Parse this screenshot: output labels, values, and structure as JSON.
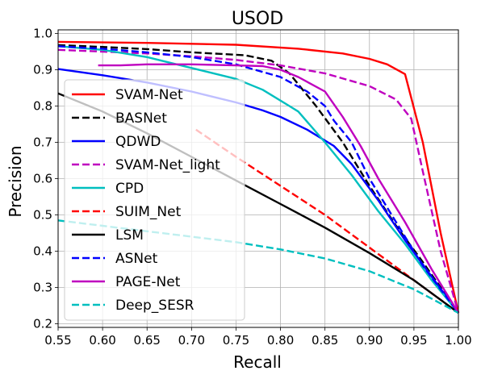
{
  "chart_data": {
    "type": "line",
    "title": "USOD",
    "xlabel": "Recall",
    "ylabel": "Precision",
    "xlim": [
      0.55,
      1.0
    ],
    "ylim": [
      0.19,
      1.01
    ],
    "xticks": [
      "0.55",
      "0.60",
      "0.65",
      "0.70",
      "0.75",
      "0.80",
      "0.85",
      "0.90",
      "0.95",
      "1.00"
    ],
    "yticks": [
      "0.2",
      "0.3",
      "0.4",
      "0.5",
      "0.6",
      "0.7",
      "0.8",
      "0.9",
      "1.0"
    ],
    "grid": true,
    "legend_position": "left",
    "series": [
      {
        "name": "SVAM-Net",
        "color": "#ff0000",
        "dash": "solid",
        "points": [
          [
            0.55,
            0.977
          ],
          [
            0.65,
            0.974
          ],
          [
            0.75,
            0.969
          ],
          [
            0.82,
            0.958
          ],
          [
            0.87,
            0.945
          ],
          [
            0.9,
            0.93
          ],
          [
            0.92,
            0.915
          ],
          [
            0.94,
            0.888
          ],
          [
            0.96,
            0.7
          ],
          [
            0.98,
            0.45
          ],
          [
            1.0,
            0.23
          ]
        ]
      },
      {
        "name": "BASNet",
        "color": "#000000",
        "dash": "dashed",
        "points": [
          [
            0.55,
            0.968
          ],
          [
            0.6,
            0.963
          ],
          [
            0.65,
            0.957
          ],
          [
            0.7,
            0.948
          ],
          [
            0.73,
            0.944
          ],
          [
            0.76,
            0.94
          ],
          [
            0.79,
            0.925
          ],
          [
            0.81,
            0.89
          ],
          [
            0.84,
            0.8
          ],
          [
            0.87,
            0.7
          ],
          [
            0.9,
            0.58
          ],
          [
            0.93,
            0.47
          ],
          [
            0.96,
            0.37
          ],
          [
            1.0,
            0.23
          ]
        ]
      },
      {
        "name": "QDWD",
        "color": "#0000ff",
        "dash": "solid",
        "points": [
          [
            0.55,
            0.902
          ],
          [
            0.6,
            0.885
          ],
          [
            0.65,
            0.865
          ],
          [
            0.7,
            0.84
          ],
          [
            0.75,
            0.81
          ],
          [
            0.78,
            0.788
          ],
          [
            0.8,
            0.77
          ],
          [
            0.83,
            0.735
          ],
          [
            0.86,
            0.69
          ],
          [
            0.88,
            0.64
          ],
          [
            0.91,
            0.54
          ],
          [
            0.94,
            0.43
          ],
          [
            0.97,
            0.33
          ],
          [
            1.0,
            0.23
          ]
        ]
      },
      {
        "name": "SVAM-Net_light",
        "color": "#bf00bf",
        "dash": "dashed",
        "points": [
          [
            0.55,
            0.955
          ],
          [
            0.6,
            0.95
          ],
          [
            0.65,
            0.945
          ],
          [
            0.7,
            0.937
          ],
          [
            0.75,
            0.927
          ],
          [
            0.8,
            0.912
          ],
          [
            0.85,
            0.89
          ],
          [
            0.9,
            0.855
          ],
          [
            0.93,
            0.818
          ],
          [
            0.947,
            0.765
          ],
          [
            0.96,
            0.62
          ],
          [
            0.98,
            0.4
          ],
          [
            1.0,
            0.23
          ]
        ]
      },
      {
        "name": "CPD",
        "color": "#00bfbf",
        "dash": "solid",
        "points": [
          [
            0.55,
            0.965
          ],
          [
            0.6,
            0.955
          ],
          [
            0.65,
            0.935
          ],
          [
            0.7,
            0.905
          ],
          [
            0.75,
            0.875
          ],
          [
            0.78,
            0.845
          ],
          [
            0.81,
            0.8
          ],
          [
            0.82,
            0.785
          ],
          [
            0.85,
            0.7
          ],
          [
            0.88,
            0.61
          ],
          [
            0.91,
            0.51
          ],
          [
            0.94,
            0.42
          ],
          [
            0.97,
            0.32
          ],
          [
            1.0,
            0.23
          ]
        ]
      },
      {
        "name": "SUIM_Net",
        "color": "#ff0000",
        "dash": "dashed",
        "points": [
          [
            0.705,
            0.735
          ],
          [
            0.75,
            0.66
          ],
          [
            0.8,
            0.58
          ],
          [
            0.85,
            0.5
          ],
          [
            0.9,
            0.41
          ],
          [
            0.95,
            0.32
          ],
          [
            1.0,
            0.23
          ]
        ]
      },
      {
        "name": "LSM",
        "color": "#000000",
        "dash": "solid",
        "points": [
          [
            0.55,
            0.835
          ],
          [
            0.6,
            0.785
          ],
          [
            0.65,
            0.725
          ],
          [
            0.7,
            0.66
          ],
          [
            0.75,
            0.595
          ],
          [
            0.8,
            0.53
          ],
          [
            0.85,
            0.465
          ],
          [
            0.9,
            0.395
          ],
          [
            0.95,
            0.32
          ],
          [
            1.0,
            0.23
          ]
        ]
      },
      {
        "name": "ASNet",
        "color": "#0000ff",
        "dash": "dashed",
        "points": [
          [
            0.55,
            0.965
          ],
          [
            0.6,
            0.958
          ],
          [
            0.65,
            0.948
          ],
          [
            0.7,
            0.935
          ],
          [
            0.75,
            0.915
          ],
          [
            0.8,
            0.88
          ],
          [
            0.83,
            0.84
          ],
          [
            0.85,
            0.8
          ],
          [
            0.86,
            0.76
          ],
          [
            0.88,
            0.7
          ],
          [
            0.9,
            0.6
          ],
          [
            0.93,
            0.48
          ],
          [
            0.96,
            0.36
          ],
          [
            1.0,
            0.23
          ]
        ]
      },
      {
        "name": "PAGE-Net",
        "color": "#bf00bf",
        "dash": "solid",
        "points": [
          [
            0.595,
            0.912
          ],
          [
            0.62,
            0.912
          ],
          [
            0.65,
            0.915
          ],
          [
            0.7,
            0.915
          ],
          [
            0.75,
            0.912
          ],
          [
            0.78,
            0.91
          ],
          [
            0.8,
            0.9
          ],
          [
            0.82,
            0.88
          ],
          [
            0.85,
            0.84
          ],
          [
            0.87,
            0.77
          ],
          [
            0.89,
            0.69
          ],
          [
            0.91,
            0.6
          ],
          [
            0.94,
            0.48
          ],
          [
            0.97,
            0.35
          ],
          [
            1.0,
            0.23
          ]
        ]
      },
      {
        "name": "Deep_SESR",
        "color": "#00bfbf",
        "dash": "dashed",
        "points": [
          [
            0.55,
            0.485
          ],
          [
            0.6,
            0.47
          ],
          [
            0.65,
            0.455
          ],
          [
            0.7,
            0.44
          ],
          [
            0.75,
            0.425
          ],
          [
            0.8,
            0.405
          ],
          [
            0.85,
            0.38
          ],
          [
            0.9,
            0.345
          ],
          [
            0.95,
            0.295
          ],
          [
            1.0,
            0.23
          ]
        ]
      }
    ]
  }
}
